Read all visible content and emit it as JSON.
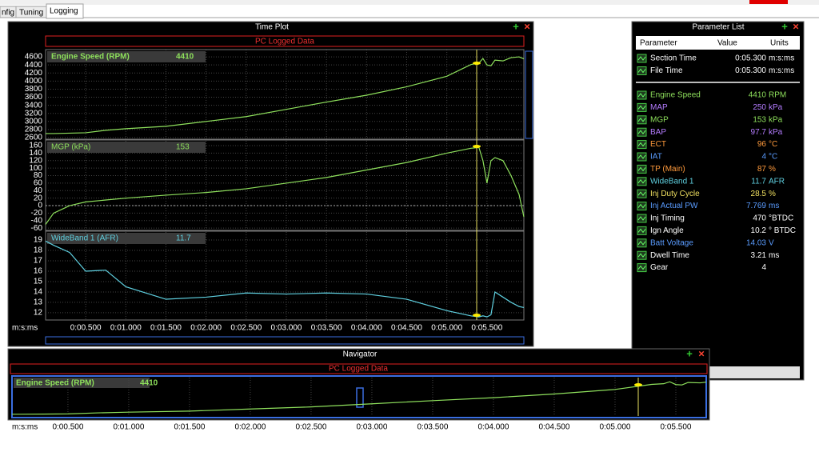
{
  "tabs": [
    "nfig",
    "Tuning",
    "Logging"
  ],
  "time_plot": {
    "title": "Time Plot",
    "banner": "PC Logged Data",
    "x_label": "m:s:ms",
    "xlim": [
      0,
      5.96
    ],
    "xticks": [
      {
        "value": 0.5,
        "label": "0:00.500"
      },
      {
        "value": 1,
        "label": "0:01.000"
      },
      {
        "value": 1.5,
        "label": "0:01.500"
      },
      {
        "value": 2,
        "label": "0:02.000"
      },
      {
        "value": 2.5,
        "label": "0:02.500"
      },
      {
        "value": 3,
        "label": "0:03.000"
      },
      {
        "value": 3.5,
        "label": "0:03.500"
      },
      {
        "value": 4,
        "label": "0:04.000"
      },
      {
        "value": 4.5,
        "label": "0:04.500"
      },
      {
        "value": 5,
        "label": "0:05.000"
      },
      {
        "value": 5.5,
        "label": "0:05.500"
      }
    ],
    "x": [
      0,
      0.1,
      0.3,
      0.5,
      0.75,
      1,
      1.5,
      2,
      2.5,
      3,
      3.5,
      4,
      4.5,
      5,
      5.3,
      5.4,
      5.45,
      5.5,
      5.55,
      5.6,
      5.7,
      5.8,
      5.9,
      5.96
    ],
    "panels": [
      {
        "label": "Engine Speed (RPM)",
        "value": 4410,
        "color": "#8ee05c",
        "ylim": [
          2560,
          4780
        ],
        "yticks": [
          2600,
          2800,
          3000,
          3200,
          3400,
          3600,
          3800,
          4000,
          4200,
          4400,
          4600
        ],
        "values": [
          2700,
          2700,
          2710,
          2720,
          2780,
          2820,
          2880,
          3000,
          3120,
          3300,
          3480,
          3650,
          3860,
          4120,
          4410,
          4450,
          4560,
          4400,
          4380,
          4520,
          4500,
          4580,
          4600,
          4550
        ]
      },
      {
        "label": "MGP (kPa)",
        "value": 153,
        "color": "#8ee05c",
        "ylim": [
          -66,
          175
        ],
        "yticks": [
          -60,
          -40,
          -20,
          0,
          20,
          40,
          60,
          80,
          100,
          120,
          140,
          160
        ],
        "values": [
          -50,
          -20,
          0,
          10,
          15,
          20,
          28,
          35,
          45,
          60,
          75,
          95,
          115,
          140,
          153,
          155,
          120,
          60,
          120,
          128,
          120,
          80,
          30,
          -30
        ]
      },
      {
        "label": "WideBand 1 (AFR)",
        "value": 11.7,
        "color": "#5fd0e0",
        "ylim": [
          11.3,
          19.85
        ],
        "yticks": [
          12,
          13,
          14,
          15,
          16,
          17,
          18,
          19
        ],
        "values": [
          18.9,
          18.5,
          17.8,
          16.0,
          16.1,
          14.5,
          13.3,
          13.5,
          13.9,
          13.8,
          13.9,
          13.8,
          13.3,
          12.2,
          11.7,
          11.6,
          11.7,
          11.6,
          11.8,
          14.0,
          13.5,
          13.0,
          12.6,
          12.5
        ]
      }
    ]
  },
  "navigator": {
    "title": "Navigator",
    "banner": "PC Logged Data",
    "label": "Engine Speed (RPM)",
    "value": 4410,
    "xlim": [
      0.04,
      5.75
    ],
    "ylim": [
      2600,
      4800
    ]
  },
  "parameter_list": {
    "title": "Parameter List",
    "headers": [
      "Parameter",
      "Value",
      "Units"
    ],
    "rows": [
      {
        "name": "Section Time",
        "value": "0:05.300",
        "units": "m:s:ms",
        "color": "#ffffff"
      },
      {
        "name": "File Time",
        "value": "0:05.300",
        "units": "m:s:ms",
        "color": "#ffffff"
      },
      {
        "name": "Engine Speed",
        "value": 4410,
        "units": "RPM",
        "color": "#8ee05c"
      },
      {
        "name": "MAP",
        "value": 250,
        "units": "kPa",
        "color": "#b47cff"
      },
      {
        "name": "MGP",
        "value": 153,
        "units": "kPa",
        "color": "#8ee05c"
      },
      {
        "name": "BAP",
        "value": 97.7,
        "units": "kPa",
        "color": "#b47cff"
      },
      {
        "name": "ECT",
        "value": 96,
        "units": "°C",
        "color": "#ff9a3c"
      },
      {
        "name": "IAT",
        "value": 4,
        "units": "°C",
        "color": "#5a9cff"
      },
      {
        "name": "TP (Main)",
        "value": 87,
        "units": "%",
        "color": "#ff9a3c"
      },
      {
        "name": "WideBand 1",
        "value": 11.7,
        "units": "AFR",
        "color": "#5fd0e0"
      },
      {
        "name": "Inj Duty Cycle",
        "value": 28.5,
        "units": "%",
        "color": "#f0e060"
      },
      {
        "name": "Inj Actual PW",
        "value": 7.769,
        "units": "ms",
        "color": "#5a9cff"
      },
      {
        "name": "Inj Timing",
        "value": 470,
        "units": "°BTDC",
        "color": "#ffffff"
      },
      {
        "name": "Ign Angle",
        "value": 10.2,
        "units": "° BTDC",
        "color": "#ffffff"
      },
      {
        "name": "Batt Voltage",
        "value": 14.03,
        "units": "V",
        "color": "#5a9cff"
      },
      {
        "name": "Dwell Time",
        "value": 3.21,
        "units": "ms",
        "color": "#ffffff"
      },
      {
        "name": "Gear",
        "value": 4,
        "color": "#ffffff"
      }
    ]
  }
}
